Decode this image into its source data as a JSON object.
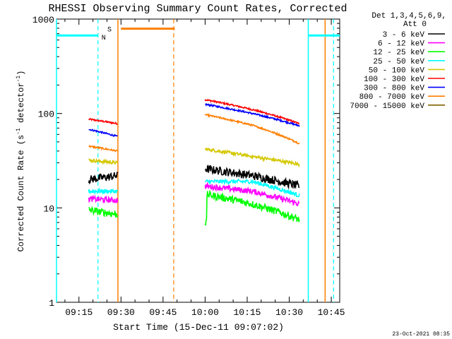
{
  "chart_data": {
    "type": "line",
    "title": "RHESSI Observing Summary Count Rates, Corrected",
    "xlabel": "Start Time (15-Dec-11 09:07:02)",
    "ylabel_main": "Corrected Count Rate (s",
    "ylabel_sup1": "-1",
    "ylabel_mid": " detector",
    "ylabel_sup2": "-1",
    "ylabel_end": ")",
    "xlim": [
      547.0,
      648.0
    ],
    "ylim": [
      1,
      1000
    ],
    "yscale": "log",
    "x_unit": "minutes since 00:00",
    "x_ticks": [
      555,
      570,
      585,
      600,
      615,
      630,
      645
    ],
    "x_tick_labels": [
      "09:15",
      "09:30",
      "09:45",
      "10:00",
      "10:15",
      "10:30",
      "10:45"
    ],
    "y_ticks": [
      1,
      10,
      100,
      1000
    ],
    "y_tick_labels": [
      "1",
      "10",
      "100",
      "1000"
    ],
    "legend_header": [
      "Det 1,3,4,5,6,9,",
      "Att 0"
    ],
    "legend_placement": "right",
    "timestamp": "23-Oct-2021 08:35",
    "segments": [
      [
        558.5,
        568.8
      ],
      [
        600.0,
        633.6
      ]
    ],
    "series": [
      {
        "name": "3 - 6 keV",
        "color": "#000000",
        "levels": [
          [
            20,
            22
          ],
          [
            26,
            22,
            17
          ]
        ],
        "noise": 0.1
      },
      {
        "name": "6 - 12 keV",
        "color": "#ff00ff",
        "levels": [
          [
            12.5,
            12
          ],
          [
            17,
            15,
            11
          ]
        ],
        "noise": 0.07
      },
      {
        "name": "12 - 25 keV",
        "color": "#00ff00",
        "levels": [
          [
            9.5,
            8.5
          ],
          [
            14,
            11,
            7.5
          ]
        ],
        "noise": 0.09
      },
      {
        "name": "25 - 50 keV",
        "color": "#00ffff",
        "levels": [
          [
            15,
            15
          ],
          [
            19,
            19,
            13.5
          ]
        ],
        "noise": 0.05
      },
      {
        "name": "50 - 100 keV",
        "color": "#d4c800",
        "levels": [
          [
            32,
            30
          ],
          [
            42,
            35,
            29
          ]
        ],
        "noise": 0.04
      },
      {
        "name": "100 - 300 keV",
        "color": "#ff0000",
        "levels": [
          [
            87,
            78
          ],
          [
            140,
            110,
            78
          ]
        ],
        "noise": 0.02
      },
      {
        "name": "300 - 800 keV",
        "color": "#0000ff",
        "levels": [
          [
            68,
            57
          ],
          [
            125,
            100,
            74
          ]
        ],
        "noise": 0.02
      },
      {
        "name": "800 - 7000 keV",
        "color": "#ff7f00",
        "levels": [
          [
            45,
            40
          ],
          [
            97,
            75,
            48
          ]
        ],
        "noise": 0.02
      },
      {
        "name": "7000 - 15000 keV",
        "color": "#806000",
        "levels": [],
        "noise": 0
      }
    ],
    "flags": {
      "night_color": "#00ffff",
      "saa_color": "#ff7f00",
      "night_bars": [
        [
          547.0,
          561.8
        ],
        [
          637.0,
          648.0
        ]
      ],
      "night_bar_level": 670,
      "night_lines_solid": [
        547.0,
        636.8
      ],
      "night_lines_dashed": [
        561.8,
        645.8
      ],
      "saa_bar": [
        570.0,
        589.2
      ],
      "saa_bar_level": 790,
      "saa_lines_solid": [
        568.9,
        642.8
      ],
      "saa_lines_dashed": [
        588.8
      ],
      "night_label": "N",
      "saa_label": "S"
    }
  }
}
